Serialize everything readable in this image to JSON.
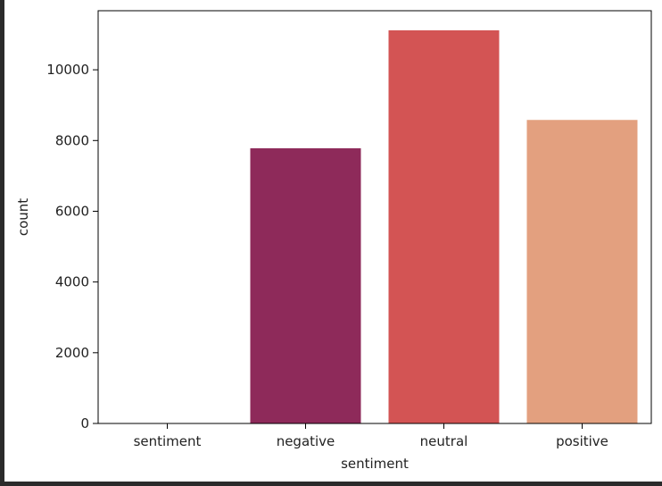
{
  "chart_data": {
    "type": "bar",
    "categories": [
      "sentiment",
      "negative",
      "neutral",
      "positive"
    ],
    "values": [
      1,
      7781,
      11117,
      8582
    ],
    "colors": [
      "#f5e0d3",
      "#8e2a5a",
      "#d35454",
      "#e3a07f"
    ],
    "xlabel": "sentiment",
    "ylabel": "count",
    "ylim": [
      0,
      11670
    ],
    "yticks": [
      0,
      2000,
      4000,
      6000,
      8000,
      10000
    ],
    "grid": false
  }
}
